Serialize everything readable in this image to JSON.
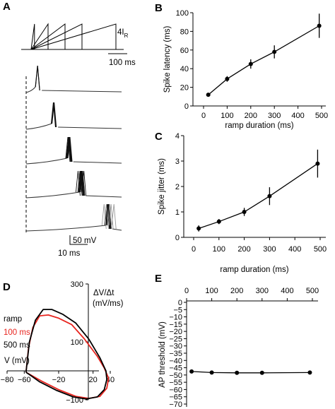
{
  "panels": {
    "A": {
      "label": "A",
      "stimulus_label": "4I",
      "stimulus_label_sub": "R",
      "time_scale_label": "100 ms",
      "voltage_scale_label": "50 mV",
      "sweep_time_scale_label": "10 ms"
    },
    "B": {
      "label": "B"
    },
    "C": {
      "label": "C"
    },
    "D": {
      "label": "D"
    },
    "E": {
      "label": "E"
    }
  },
  "chart_data": [
    {
      "panel": "A",
      "type": "line",
      "stimulus_ramp_durations_ms": [
        20,
        100,
        200,
        300,
        500
      ],
      "spike_sweeps": [
        {
          "ramp_ms": 20,
          "spike_latency_ms": 12
        },
        {
          "ramp_ms": 100,
          "spike_latency_ms": 29
        },
        {
          "ramp_ms": 200,
          "spike_latency_ms": 45
        },
        {
          "ramp_ms": 300,
          "spike_latency_ms": 58
        },
        {
          "ramp_ms": 500,
          "spike_latency_ms": 86
        }
      ]
    },
    {
      "panel": "B",
      "type": "line",
      "title": "",
      "xlabel": "ramp duration (ms)",
      "ylabel": "Spike latency (ms)",
      "xlim": [
        0,
        500
      ],
      "ylim": [
        0,
        100
      ],
      "xticks": [
        0,
        100,
        200,
        300,
        400,
        500
      ],
      "yticks": [
        0,
        20,
        40,
        60,
        80,
        100
      ],
      "x": [
        20,
        100,
        200,
        300,
        490
      ],
      "y": [
        12,
        29,
        45,
        58,
        86
      ],
      "yerr": [
        1.5,
        3,
        5,
        7,
        13
      ]
    },
    {
      "panel": "C",
      "type": "line",
      "title": "",
      "xlabel": "ramp duration (ms)",
      "ylabel": "Spike jitter (ms)",
      "xlim": [
        0,
        500
      ],
      "ylim": [
        0,
        4
      ],
      "xticks": [
        0,
        100,
        200,
        300,
        400,
        500
      ],
      "yticks": [
        0,
        1,
        2,
        3,
        4
      ],
      "x": [
        20,
        100,
        200,
        300,
        490
      ],
      "y": [
        0.35,
        0.62,
        1.0,
        1.62,
        2.9
      ],
      "yerr": [
        0.12,
        0.1,
        0.16,
        0.35,
        0.55
      ]
    },
    {
      "panel": "D",
      "type": "line",
      "title": "",
      "xlabel": "V (mV)",
      "ylabel_line1": "ΔV/Δt",
      "ylabel_line2": "(mV/ms)",
      "xlim": [
        -80,
        40
      ],
      "ylim": [
        -100,
        300
      ],
      "xticks": [
        -80,
        -60,
        -20,
        20,
        40
      ],
      "yticks": [
        -100,
        100,
        300
      ],
      "legend_title": "ramp",
      "legend_placement": "left",
      "series": [
        {
          "name": "100 ms",
          "color": "#e8251f",
          "points": [
            [
              -58,
              -5
            ],
            [
              -55,
              80
            ],
            [
              -50,
              150
            ],
            [
              -42,
              190
            ],
            [
              -32,
              193
            ],
            [
              -20,
              182
            ],
            [
              -5,
              160
            ],
            [
              10,
              110
            ],
            [
              25,
              50
            ],
            [
              33,
              10
            ],
            [
              38,
              -25
            ],
            [
              36,
              -60
            ],
            [
              28,
              -88
            ],
            [
              15,
              -95
            ],
            [
              0,
              -88
            ],
            [
              -20,
              -65
            ],
            [
              -40,
              -35
            ],
            [
              -52,
              -15
            ],
            [
              -58,
              -5
            ]
          ]
        },
        {
          "name": "500 ms",
          "color": "#000000",
          "points": [
            [
              -58,
              -5
            ],
            [
              -54,
              100
            ],
            [
              -47,
              175
            ],
            [
              -38,
              212
            ],
            [
              -28,
              212
            ],
            [
              -15,
              195
            ],
            [
              0,
              165
            ],
            [
              15,
              110
            ],
            [
              28,
              45
            ],
            [
              35,
              0
            ],
            [
              36,
              -30
            ],
            [
              33,
              -65
            ],
            [
              25,
              -90
            ],
            [
              12,
              -97
            ],
            [
              -3,
              -90
            ],
            [
              -22,
              -68
            ],
            [
              -42,
              -38
            ],
            [
              -53,
              -15
            ],
            [
              -58,
              -5
            ]
          ]
        }
      ]
    },
    {
      "panel": "E",
      "type": "line",
      "title": "",
      "xlabel": "",
      "ylabel": "AP threshold (mV)",
      "xlim": [
        0,
        500
      ],
      "ylim": [
        -70,
        0
      ],
      "xticks": [
        0,
        100,
        200,
        300,
        400,
        500
      ],
      "yticks": [
        0,
        -5,
        -10,
        -15,
        -20,
        -25,
        -30,
        -35,
        -40,
        -45,
        -50,
        -55,
        -60,
        -65,
        -70
      ],
      "x": [
        20,
        100,
        200,
        300,
        490
      ],
      "y": [
        -47.6,
        -48.3,
        -48.5,
        -48.5,
        -48.3
      ],
      "yerr": [
        0.3,
        0.3,
        0.3,
        0.3,
        0.3
      ]
    }
  ]
}
